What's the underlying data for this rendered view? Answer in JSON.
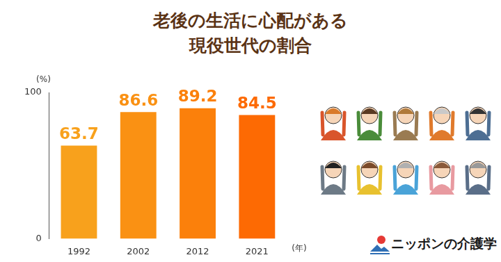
{
  "chart_data": {
    "type": "bar",
    "title": [
      "老後の生活に心配がある",
      "現役世代の割合"
    ],
    "categories": [
      "1992",
      "2002",
      "2012",
      "2021"
    ],
    "values": [
      63.7,
      86.6,
      89.2,
      84.5
    ],
    "colors": [
      "#f8a11c",
      "#fa9113",
      "#fb800b",
      "#fd6a03"
    ],
    "y_label": "(%)",
    "x_label": "(年)",
    "ylim": [
      0,
      100
    ],
    "yticks": [
      0,
      100
    ],
    "grid": false,
    "data_labels": true,
    "legend": false,
    "source": "ニッポンの介護学"
  }
}
